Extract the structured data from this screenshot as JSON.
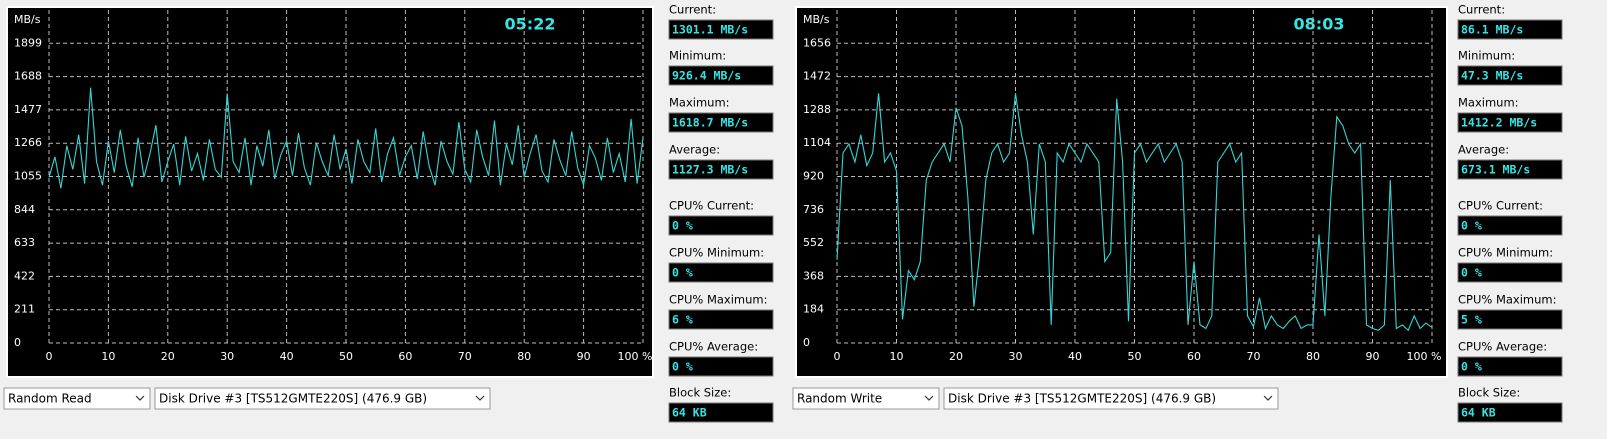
{
  "chart_data": [
    {
      "type": "line",
      "time": "05:22",
      "y_label": "MB/s",
      "xlim": [
        0,
        100
      ],
      "ylim": [
        0,
        2110
      ],
      "yticks": [
        0,
        211,
        422,
        633,
        844,
        1055,
        1266,
        1477,
        1688,
        1899
      ],
      "xticks": [
        0,
        10,
        20,
        30,
        40,
        50,
        60,
        70,
        80,
        90,
        {
          "value": 100,
          "label": "100 %"
        }
      ],
      "grid": true,
      "x": [
        0,
        1,
        2,
        3,
        4,
        5,
        6,
        7,
        8,
        9,
        10,
        11,
        12,
        13,
        14,
        15,
        16,
        17,
        18,
        19,
        20,
        21,
        22,
        23,
        24,
        25,
        26,
        27,
        28,
        29,
        30,
        31,
        32,
        33,
        34,
        35,
        36,
        37,
        38,
        39,
        40,
        41,
        42,
        43,
        44,
        45,
        46,
        47,
        48,
        49,
        50,
        51,
        52,
        53,
        54,
        55,
        56,
        57,
        58,
        59,
        60,
        61,
        62,
        63,
        64,
        65,
        66,
        67,
        68,
        69,
        70,
        71,
        72,
        73,
        74,
        75,
        76,
        77,
        78,
        79,
        80,
        81,
        82,
        83,
        84,
        85,
        86,
        87,
        88,
        89,
        90,
        91,
        92,
        93,
        94,
        95,
        96,
        97,
        98,
        99,
        100
      ],
      "series": [
        {
          "color": "#33d6d6",
          "values": [
            1050,
            1180,
            980,
            1250,
            1100,
            1320,
            1010,
            1618,
            1150,
            1000,
            1280,
            1080,
            1350,
            1120,
            990,
            1300,
            1050,
            1200,
            1380,
            1020,
            1150,
            1260,
            1000,
            1310,
            1090,
            1200,
            1030,
            1290,
            1100,
            1050,
            1580,
            1150,
            1080,
            1300,
            1000,
            1250,
            1120,
            1350,
            1040,
            1190,
            1280,
            1060,
            1330,
            1110,
            1000,
            1270,
            1150,
            1060,
            1320,
            1100,
            1230,
            1010,
            1290,
            1150,
            1080,
            1360,
            1020,
            1200,
            1300,
            1060,
            1180,
            1250,
            1040,
            1340,
            1120,
            1000,
            1280,
            1150,
            1070,
            1400,
            1100,
            1020,
            1350,
            1180,
            1060,
            1410,
            1000,
            1260,
            1130,
            1380,
            1050,
            1200,
            1320,
            1090,
            1020,
            1290,
            1160,
            1060,
            1340,
            1110,
            1000,
            1250,
            1170,
            1030,
            1300,
            1080,
            1200,
            1020,
            1420,
            1010,
            1301.1
          ]
        }
      ]
    },
    {
      "type": "line",
      "time": "08:03",
      "y_label": "MB/s",
      "xlim": [
        0,
        100
      ],
      "ylim": [
        0,
        1840
      ],
      "yticks": [
        0,
        184,
        368,
        552,
        736,
        920,
        1104,
        1288,
        1472,
        1656
      ],
      "xticks": [
        0,
        10,
        20,
        30,
        40,
        50,
        60,
        70,
        80,
        90,
        {
          "value": 100,
          "label": "100 %"
        }
      ],
      "grid": true,
      "x": [
        0,
        1,
        2,
        3,
        4,
        5,
        6,
        7,
        8,
        9,
        10,
        11,
        12,
        13,
        14,
        15,
        16,
        17,
        18,
        19,
        20,
        21,
        22,
        23,
        24,
        25,
        26,
        27,
        28,
        29,
        30,
        31,
        32,
        33,
        34,
        35,
        36,
        37,
        38,
        39,
        40,
        41,
        42,
        43,
        44,
        45,
        46,
        47,
        48,
        49,
        50,
        51,
        52,
        53,
        54,
        55,
        56,
        57,
        58,
        59,
        60,
        61,
        62,
        63,
        64,
        65,
        66,
        67,
        68,
        69,
        70,
        71,
        72,
        73,
        74,
        75,
        76,
        77,
        78,
        79,
        80,
        81,
        82,
        83,
        84,
        85,
        86,
        87,
        88,
        89,
        90,
        91,
        92,
        93,
        94,
        95,
        96,
        97,
        98,
        99,
        100
      ],
      "series": [
        {
          "color": "#33d6d6",
          "values": [
            460,
            1050,
            1100,
            1000,
            1150,
            980,
            1050,
            1380,
            1000,
            1050,
            950,
            130,
            400,
            350,
            450,
            900,
            1000,
            1050,
            1100,
            1000,
            1300,
            1200,
            800,
            200,
            500,
            900,
            1050,
            1100,
            1000,
            1050,
            1380,
            1150,
            1000,
            600,
            1100,
            1000,
            100,
            1050,
            1000,
            1100,
            1050,
            1000,
            1100,
            1050,
            1000,
            450,
            500,
            1350,
            1000,
            120,
            1050,
            1100,
            1000,
            1050,
            1100,
            1000,
            1050,
            1100,
            1000,
            100,
            450,
            100,
            80,
            150,
            1000,
            1050,
            1100,
            1000,
            1050,
            150,
            90,
            250,
            80,
            150,
            100,
            80,
            120,
            150,
            80,
            100,
            100,
            600,
            150,
            800,
            1250,
            1200,
            1100,
            1050,
            1100,
            100,
            80,
            70,
            100,
            900,
            80,
            100,
            70,
            150,
            80,
            110,
            86.1
          ]
        }
      ]
    }
  ],
  "panels": [
    {
      "mode": "Random Read",
      "drive": "Disk Drive #3  [TS512GMTE220S]  (476.9 GB)",
      "stats": [
        {
          "label": "Current:",
          "value": "1301.1 MB/s"
        },
        {
          "label": "Minimum:",
          "value": "926.4 MB/s"
        },
        {
          "label": "Maximum:",
          "value": "1618.7 MB/s"
        },
        {
          "label": "Average:",
          "value": "1127.3 MB/s"
        },
        {
          "label": "CPU% Current:",
          "value": "0 %"
        },
        {
          "label": "CPU% Minimum:",
          "value": "0 %"
        },
        {
          "label": "CPU% Maximum:",
          "value": "6 %"
        },
        {
          "label": "CPU% Average:",
          "value": "0 %"
        },
        {
          "label": "Block Size:",
          "value": "64 KB"
        }
      ]
    },
    {
      "mode": "Random Write",
      "drive": "Disk Drive #3  [TS512GMTE220S]  (476.9 GB)",
      "stats": [
        {
          "label": "Current:",
          "value": "86.1 MB/s"
        },
        {
          "label": "Minimum:",
          "value": "47.3 MB/s"
        },
        {
          "label": "Maximum:",
          "value": "1412.2 MB/s"
        },
        {
          "label": "Average:",
          "value": "673.1 MB/s"
        },
        {
          "label": "CPU% Current:",
          "value": "0 %"
        },
        {
          "label": "CPU% Minimum:",
          "value": "0 %"
        },
        {
          "label": "CPU% Maximum:",
          "value": "5 %"
        },
        {
          "label": "CPU% Average:",
          "value": "0 %"
        },
        {
          "label": "Block Size:",
          "value": "64 KB"
        }
      ]
    }
  ]
}
